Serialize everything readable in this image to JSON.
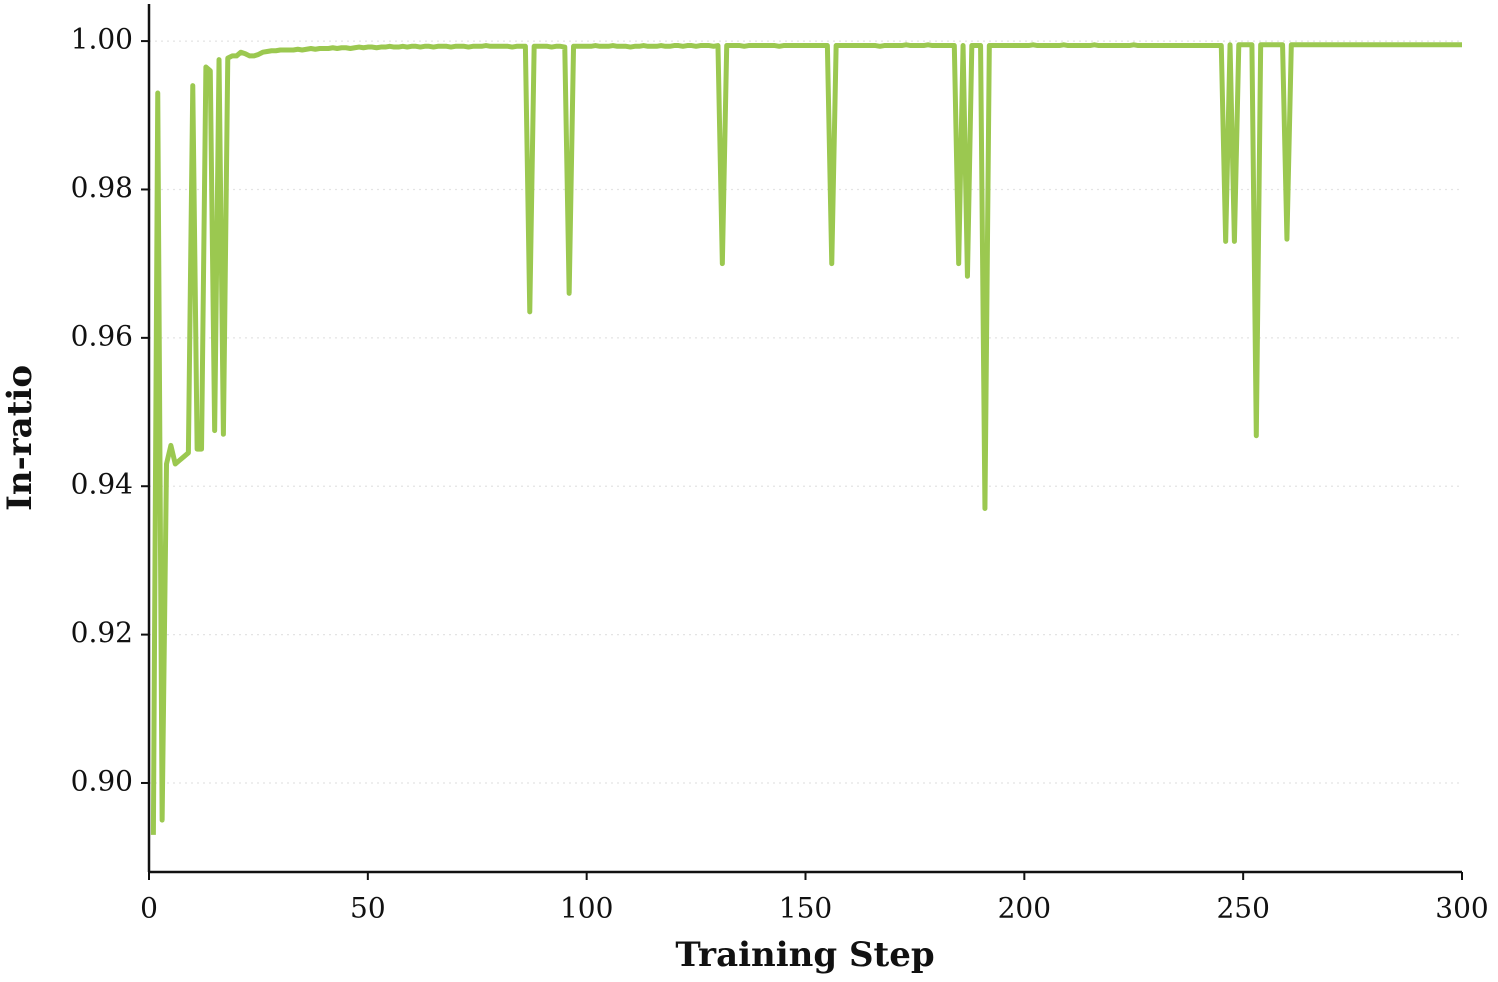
{
  "chart_data": {
    "type": "line",
    "xlabel": "Training Step",
    "ylabel": "In-ratio",
    "color": "#9bc850",
    "grid": true,
    "xlim": [
      0,
      300
    ],
    "xticks": [
      0,
      50,
      100,
      150,
      200,
      250,
      300
    ],
    "ylim": [
      0.888,
      1.005
    ],
    "yticks": [
      {
        "value": 0.9,
        "label": "0.90"
      },
      0.92,
      0.94,
      0.96,
      0.98,
      {
        "value": 1,
        "label": "1.00"
      }
    ],
    "x": [
      1,
      2,
      3,
      4,
      5,
      6,
      7,
      8,
      9,
      10,
      11,
      12,
      13,
      14,
      15,
      16,
      17,
      18,
      19,
      20,
      21,
      22,
      23,
      24,
      25,
      26,
      27,
      28,
      29,
      30,
      31,
      32,
      33,
      34,
      35,
      36,
      37,
      38,
      39,
      40,
      41,
      42,
      43,
      44,
      45,
      46,
      47,
      48,
      49,
      50,
      51,
      52,
      53,
      54,
      55,
      56,
      57,
      58,
      59,
      60,
      61,
      62,
      63,
      64,
      65,
      66,
      67,
      68,
      69,
      70,
      71,
      72,
      73,
      74,
      75,
      76,
      77,
      78,
      79,
      80,
      81,
      82,
      83,
      84,
      85,
      86,
      87,
      88,
      89,
      90,
      91,
      92,
      93,
      94,
      95,
      96,
      97,
      98,
      99,
      100,
      101,
      102,
      103,
      104,
      105,
      106,
      107,
      108,
      109,
      110,
      111,
      112,
      113,
      114,
      115,
      116,
      117,
      118,
      119,
      120,
      121,
      122,
      123,
      124,
      125,
      126,
      127,
      128,
      129,
      130,
      131,
      132,
      133,
      134,
      135,
      136,
      137,
      138,
      139,
      140,
      141,
      142,
      143,
      144,
      145,
      146,
      147,
      148,
      149,
      150,
      151,
      152,
      153,
      154,
      155,
      156,
      157,
      158,
      159,
      160,
      161,
      162,
      163,
      164,
      165,
      166,
      167,
      168,
      169,
      170,
      171,
      172,
      173,
      174,
      175,
      176,
      177,
      178,
      179,
      180,
      181,
      182,
      183,
      184,
      185,
      186,
      187,
      188,
      189,
      190,
      191,
      192,
      193,
      194,
      195,
      196,
      197,
      198,
      199,
      200,
      201,
      202,
      203,
      204,
      205,
      206,
      207,
      208,
      209,
      210,
      211,
      212,
      213,
      214,
      215,
      216,
      217,
      218,
      219,
      220,
      221,
      222,
      223,
      224,
      225,
      226,
      227,
      228,
      229,
      230,
      231,
      232,
      233,
      234,
      235,
      236,
      237,
      238,
      239,
      240,
      241,
      242,
      243,
      244,
      245,
      246,
      247,
      248,
      249,
      250,
      251,
      252,
      253,
      254,
      255,
      256,
      257,
      258,
      259,
      260,
      261,
      262,
      263,
      264,
      265,
      266,
      267,
      268,
      269,
      270,
      271,
      272,
      273,
      274,
      275,
      276,
      277,
      278,
      279,
      280,
      281,
      282,
      283,
      284,
      285,
      286,
      287,
      288,
      289,
      290,
      291,
      292,
      293,
      294,
      295,
      296,
      297,
      298,
      299,
      300
    ],
    "values": [
      0.893,
      0.993,
      0.895,
      0.943,
      0.9455,
      0.943,
      0.9435,
      0.944,
      0.9445,
      0.994,
      0.945,
      0.945,
      0.9965,
      0.996,
      0.9475,
      0.9975,
      0.947,
      0.9977,
      0.998,
      0.998,
      0.9985,
      0.9983,
      0.998,
      0.998,
      0.9982,
      0.9985,
      0.9986,
      0.9987,
      0.9987,
      0.9988,
      0.9988,
      0.9988,
      0.9988,
      0.9989,
      0.9988,
      0.9989,
      0.999,
      0.9989,
      0.999,
      0.999,
      0.999,
      0.9991,
      0.999,
      0.9991,
      0.9991,
      0.999,
      0.9991,
      0.9992,
      0.9991,
      0.9992,
      0.9992,
      0.9991,
      0.9992,
      0.9992,
      0.9993,
      0.9992,
      0.9992,
      0.9993,
      0.9992,
      0.9993,
      0.9993,
      0.9992,
      0.9993,
      0.9993,
      0.9992,
      0.9993,
      0.9993,
      0.9993,
      0.9992,
      0.9993,
      0.9993,
      0.9993,
      0.9992,
      0.9993,
      0.9993,
      0.9993,
      0.9994,
      0.9993,
      0.9993,
      0.9993,
      0.9993,
      0.9993,
      0.9992,
      0.9993,
      0.9993,
      0.9993,
      0.9635,
      0.9993,
      0.9993,
      0.9993,
      0.9993,
      0.9992,
      0.9993,
      0.9993,
      0.9992,
      0.966,
      0.9993,
      0.9993,
      0.9993,
      0.9993,
      0.9993,
      0.9994,
      0.9993,
      0.9993,
      0.9993,
      0.9994,
      0.9993,
      0.9993,
      0.9993,
      0.9992,
      0.9993,
      0.9993,
      0.9994,
      0.9993,
      0.9993,
      0.9993,
      0.9994,
      0.9993,
      0.9993,
      0.9994,
      0.9994,
      0.9993,
      0.9994,
      0.9994,
      0.9993,
      0.9994,
      0.9994,
      0.9994,
      0.9993,
      0.9994,
      0.97,
      0.9994,
      0.9994,
      0.9994,
      0.9994,
      0.9993,
      0.9994,
      0.9994,
      0.9994,
      0.9994,
      0.9994,
      0.9994,
      0.9994,
      0.9993,
      0.9994,
      0.9994,
      0.9994,
      0.9994,
      0.9994,
      0.9994,
      0.9994,
      0.9994,
      0.9994,
      0.9994,
      0.9994,
      0.97,
      0.9994,
      0.9994,
      0.9994,
      0.9994,
      0.9994,
      0.9994,
      0.9994,
      0.9994,
      0.9994,
      0.9994,
      0.9993,
      0.9994,
      0.9994,
      0.9994,
      0.9994,
      0.9994,
      0.9995,
      0.9994,
      0.9994,
      0.9994,
      0.9994,
      0.9995,
      0.9994,
      0.9994,
      0.9994,
      0.9994,
      0.9994,
      0.9994,
      0.97,
      0.9994,
      0.9683,
      0.9994,
      0.9994,
      0.9994,
      0.937,
      0.9994,
      0.9994,
      0.9994,
      0.9994,
      0.9994,
      0.9994,
      0.9994,
      0.9994,
      0.9994,
      0.9994,
      0.9995,
      0.9994,
      0.9994,
      0.9994,
      0.9994,
      0.9994,
      0.9994,
      0.9995,
      0.9994,
      0.9994,
      0.9994,
      0.9994,
      0.9994,
      0.9994,
      0.9995,
      0.9994,
      0.9994,
      0.9994,
      0.9994,
      0.9994,
      0.9994,
      0.9994,
      0.9994,
      0.9995,
      0.9994,
      0.9994,
      0.9994,
      0.9994,
      0.9994,
      0.9994,
      0.9994,
      0.9994,
      0.9994,
      0.9994,
      0.9994,
      0.9994,
      0.9994,
      0.9994,
      0.9994,
      0.9994,
      0.9994,
      0.9994,
      0.9994,
      0.9994,
      0.973,
      0.9995,
      0.973,
      0.9995,
      0.9995,
      0.9995,
      0.9995,
      0.9468,
      0.9995,
      0.9995,
      0.9995,
      0.9995,
      0.9995,
      0.9995,
      0.9733,
      0.9995,
      0.9995,
      0.9995,
      0.9995,
      0.9995,
      0.9995,
      0.9995,
      0.9995,
      0.9995,
      0.9995,
      0.9995,
      0.9995,
      0.9995,
      0.9995,
      0.9995,
      0.9995,
      0.9995,
      0.9995,
      0.9995,
      0.9995,
      0.9995,
      0.9995,
      0.9995,
      0.9995,
      0.9995,
      0.9995,
      0.9995,
      0.9995,
      0.9995,
      0.9995,
      0.9995,
      0.9995,
      0.9995,
      0.9995,
      0.9995,
      0.9995,
      0.9995,
      0.9995,
      0.9995,
      0.9995
    ]
  }
}
